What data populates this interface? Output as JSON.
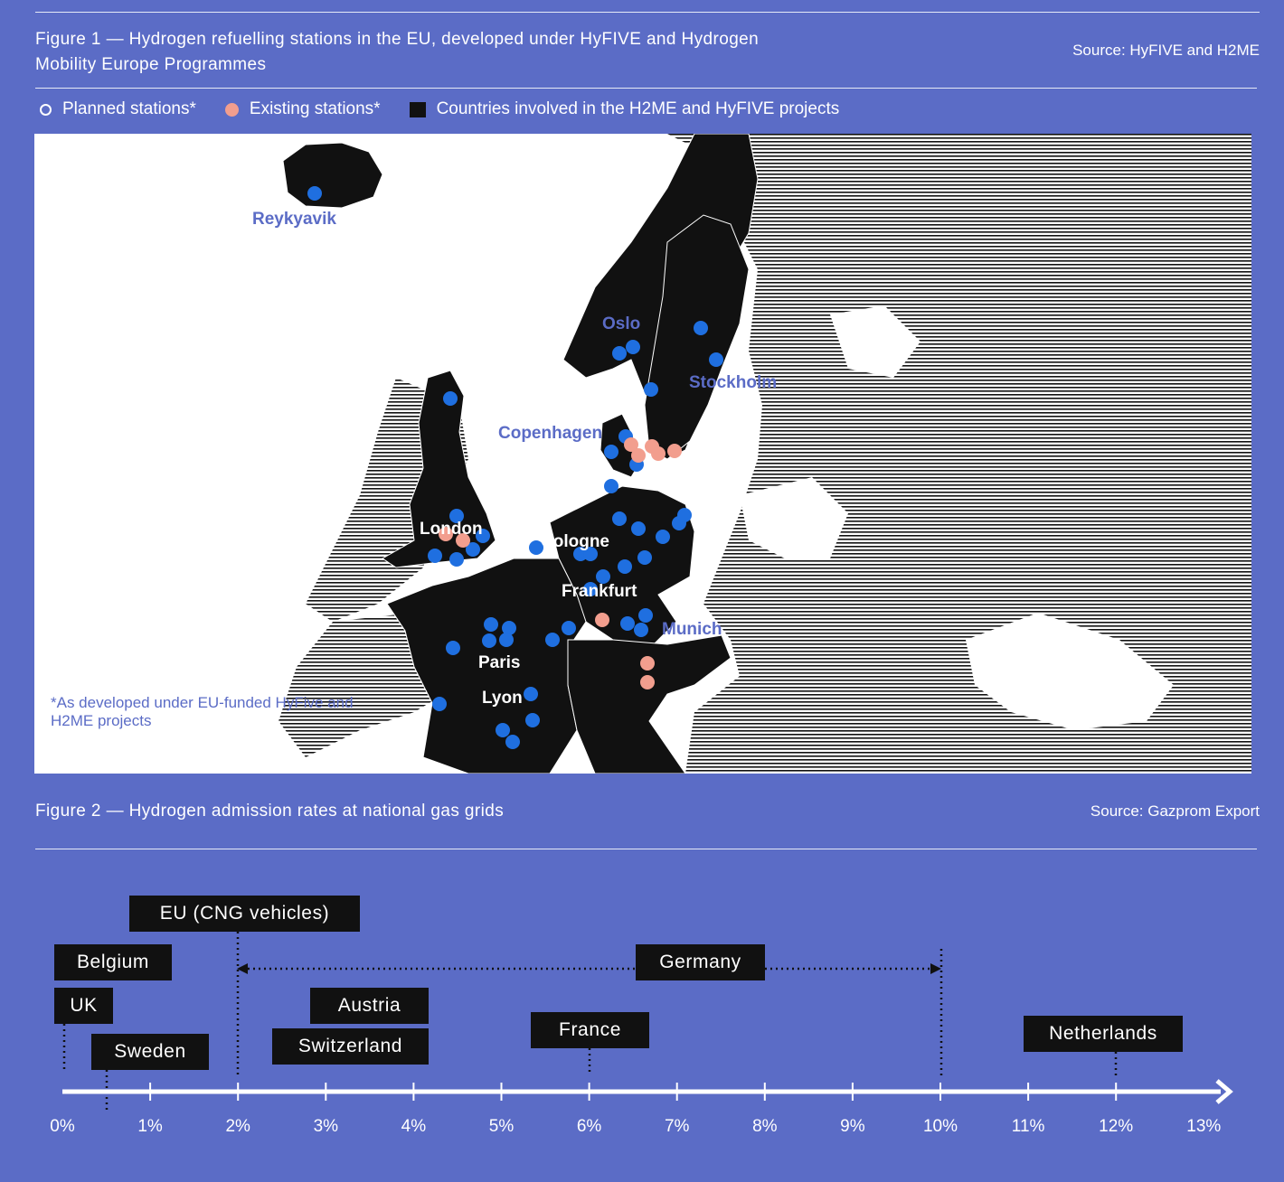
{
  "figure1": {
    "title_line1": "Figure 1 — Hydrogen refuelling stations in the EU, developed under HyFIVE and Hydrogen",
    "title_line2": "Mobility Europe Programmes",
    "source": "Source: HyFIVE and H2ME",
    "legend": {
      "planned": "Planned stations*",
      "existing": "Existing stations*",
      "countries": "Countries involved in the H2ME and HyFIVE projects"
    },
    "footnote_line1": "*As developed under EU-funded HyFive and",
    "footnote_line2": "H2ME projects",
    "cities": {
      "reykyavik": "Reykyavik",
      "oslo": "Oslo",
      "stockholm": "Stockholm",
      "copenhagen": "Copenhagen",
      "london": "London",
      "cologne": "Cologne",
      "frankfurt": "Frankfurt",
      "munich": "Munich",
      "paris": "Paris",
      "lyon": "Lyon"
    },
    "colors": {
      "planned": "#1f6fe0",
      "existing": "#f29e8e",
      "country": "#111111",
      "label_blue": "#5b6cc6"
    }
  },
  "figure2": {
    "title": "Figure 2 — Hydrogen admission rates at national gas grids",
    "source": "Source: Gazprom Export",
    "axis_ticks": [
      "0%",
      "1%",
      "2%",
      "3%",
      "4%",
      "5%",
      "6%",
      "7%",
      "8%",
      "9%",
      "10%",
      "11%",
      "12%",
      "13%"
    ],
    "countries": {
      "eu_cng": "EU (CNG vehicles)",
      "belgium": "Belgium",
      "uk": "UK",
      "sweden": "Sweden",
      "germany": "Germany",
      "austria": "Austria",
      "switzerland": "Switzerland",
      "france": "France",
      "netherlands": "Netherlands"
    }
  },
  "chart_data": {
    "type": "scatter",
    "title": "Figure 2 — Hydrogen admission rates at national gas grids",
    "xlabel": "",
    "ylabel": "",
    "xlim": [
      0,
      13
    ],
    "x_unit": "%",
    "points": [
      {
        "label": "Belgium",
        "x": 0
      },
      {
        "label": "UK",
        "x": 0
      },
      {
        "label": "Sweden",
        "x": 0.5
      },
      {
        "label": "EU (CNG vehicles)",
        "x": 2
      },
      {
        "label": "Austria",
        "x": 4
      },
      {
        "label": "Switzerland",
        "x": 2
      },
      {
        "label": "France",
        "x": 6
      },
      {
        "label": "Germany",
        "x_range": [
          2,
          10
        ]
      },
      {
        "label": "Netherlands",
        "x": 12
      }
    ]
  }
}
